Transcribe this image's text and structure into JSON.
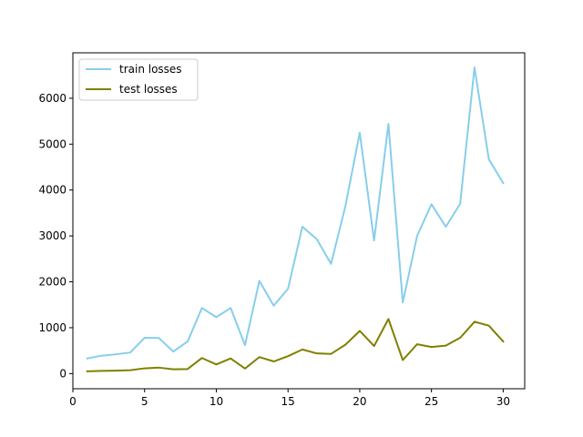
{
  "chart_data": {
    "type": "line",
    "title": "",
    "xlabel": "",
    "ylabel": "",
    "xlim": [
      0.0,
      31.5
    ],
    "ylim": [
      -330,
      6990
    ],
    "xticks": [
      0,
      5,
      10,
      15,
      20,
      25,
      30
    ],
    "yticks": [
      0,
      1000,
      2000,
      3000,
      4000,
      5000,
      6000
    ],
    "legend_position": "upper-left",
    "grid": false,
    "x": [
      1,
      2,
      3,
      4,
      5,
      6,
      7,
      8,
      9,
      10,
      11,
      12,
      13,
      14,
      15,
      16,
      17,
      18,
      19,
      20,
      21,
      22,
      23,
      24,
      25,
      26,
      27,
      28,
      29,
      30
    ],
    "series": [
      {
        "name": "train losses",
        "color": "#87CEEB",
        "values": [
          330,
          390,
          420,
          460,
          780,
          775,
          480,
          700,
          1430,
          1230,
          1430,
          620,
          2020,
          1480,
          1850,
          3200,
          2930,
          2390,
          3650,
          5250,
          2900,
          5440,
          1550,
          3000,
          3690,
          3200,
          3700,
          6670,
          4670,
          4150
        ]
      },
      {
        "name": "test losses",
        "color": "#808000",
        "values": [
          50,
          60,
          65,
          75,
          115,
          130,
          95,
          100,
          340,
          200,
          330,
          110,
          360,
          265,
          380,
          525,
          440,
          430,
          630,
          930,
          600,
          1190,
          295,
          640,
          580,
          610,
          780,
          1130,
          1045,
          700
        ]
      }
    ]
  }
}
